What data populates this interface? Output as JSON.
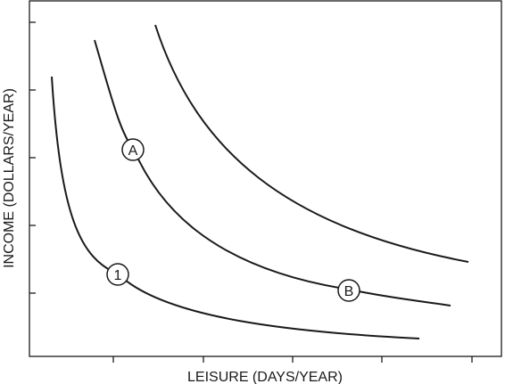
{
  "diagram": {
    "xlabel": "LEISURE (DAYS/YEAR)",
    "ylabel": "INCOME (DOLLARS/YEAR)",
    "curves": [
      {
        "id": "lower"
      },
      {
        "id": "middle"
      },
      {
        "id": "upper"
      }
    ],
    "points": [
      {
        "label": "1",
        "curve": "lower"
      },
      {
        "label": "A",
        "curve": "middle"
      },
      {
        "label": "B",
        "curve": "middle"
      }
    ],
    "x_ticks": 5,
    "y_ticks": 5,
    "line_color": "#1a1a1a"
  }
}
